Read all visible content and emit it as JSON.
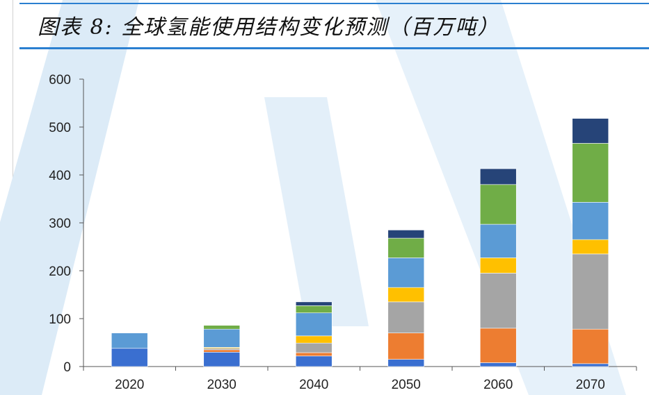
{
  "header": {
    "title": "图表 8:  全球氢能使用结构变化预测（百万吨）"
  },
  "colors": {
    "accent_rule": "#2a7fd0",
    "watermark": "#dcebf7"
  },
  "chart_data": {
    "type": "bar",
    "stacked": true,
    "categories": [
      "2020",
      "2030",
      "2040",
      "2050",
      "2060",
      "2070"
    ],
    "ylim": [
      0,
      600
    ],
    "yticks": [
      0,
      100,
      200,
      300,
      400,
      500,
      600
    ],
    "xlabel": "",
    "ylabel": "",
    "grid": false,
    "legend": "none",
    "series": [
      {
        "color": "#3a6fd0",
        "values": [
          38,
          30,
          22,
          15,
          8,
          6
        ]
      },
      {
        "color": "#ed7d31",
        "values": [
          0,
          5,
          7,
          55,
          72,
          72
        ]
      },
      {
        "color": "#a5a5a5",
        "values": [
          0,
          3,
          20,
          65,
          115,
          157
        ]
      },
      {
        "color": "#ffc000",
        "values": [
          0,
          2,
          15,
          30,
          32,
          30
        ]
      },
      {
        "color": "#5b9bd5",
        "values": [
          32,
          38,
          48,
          62,
          70,
          78
        ]
      },
      {
        "color": "#70ad47",
        "values": [
          0,
          8,
          15,
          41,
          83,
          123
        ]
      },
      {
        "color": "#264478",
        "values": [
          0,
          0,
          8,
          17,
          33,
          52
        ]
      }
    ]
  }
}
